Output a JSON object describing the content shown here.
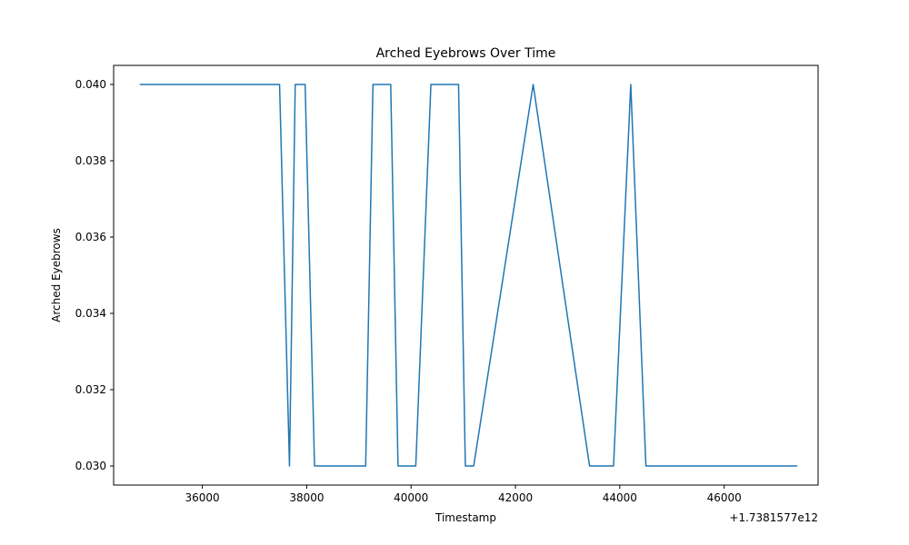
{
  "chart_data": {
    "type": "line",
    "title": "Arched Eyebrows Over Time",
    "xlabel": "Timestamp",
    "ylabel": "Arched Eyebrows",
    "x_offset_label": "+1.7381577e12",
    "xlim": [
      34300,
      47800
    ],
    "ylim": [
      0.0295,
      0.0405
    ],
    "x_ticks": [
      36000,
      38000,
      40000,
      42000,
      44000,
      46000
    ],
    "x_tick_labels": [
      "36000",
      "38000",
      "40000",
      "42000",
      "44000",
      "46000"
    ],
    "y_ticks": [
      0.03,
      0.032,
      0.034,
      0.036,
      0.038,
      0.04
    ],
    "y_tick_labels": [
      "0.030",
      "0.032",
      "0.034",
      "0.036",
      "0.038",
      "0.040"
    ],
    "grid": false,
    "series": [
      {
        "color": "#1f77b4",
        "x": [
          34800,
          37480,
          37670,
          37780,
          37970,
          38150,
          39130,
          39270,
          39610,
          39750,
          40090,
          40380,
          40910,
          41040,
          41200,
          42340,
          43420,
          43880,
          44210,
          44500,
          47400
        ],
        "y": [
          0.04,
          0.04,
          0.03,
          0.04,
          0.04,
          0.03,
          0.03,
          0.04,
          0.04,
          0.03,
          0.03,
          0.04,
          0.04,
          0.03,
          0.03,
          0.04,
          0.03,
          0.03,
          0.04,
          0.03,
          0.03
        ]
      }
    ]
  }
}
